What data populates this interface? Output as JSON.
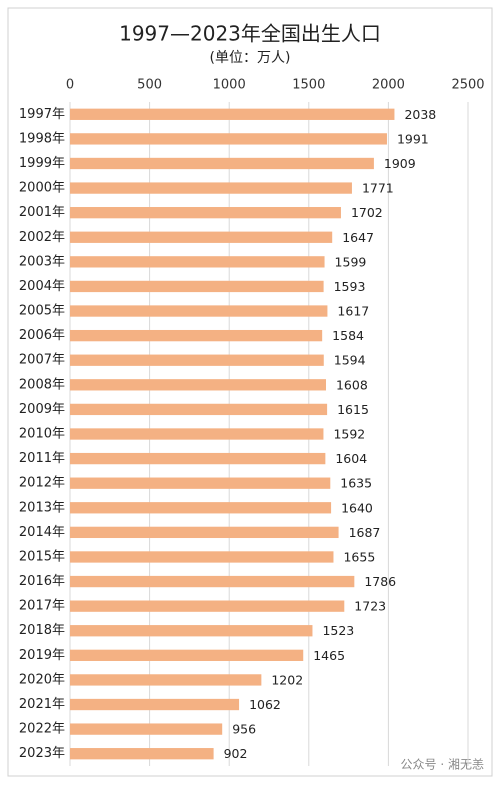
{
  "chart_data": {
    "type": "bar",
    "orientation": "horizontal",
    "title": "1997—2023年全国出生人口",
    "subtitle": "(单位：万人)",
    "categories": [
      "1997年",
      "1998年",
      "1999年",
      "2000年",
      "2001年",
      "2002年",
      "2003年",
      "2004年",
      "2005年",
      "2006年",
      "2007年",
      "2008年",
      "2009年",
      "2010年",
      "2011年",
      "2012年",
      "2013年",
      "2014年",
      "2015年",
      "2016年",
      "2017年",
      "2018年",
      "2019年",
      "2020年",
      "2021年",
      "2022年",
      "2023年"
    ],
    "values": [
      2038,
      1991,
      1909,
      1771,
      1702,
      1647,
      1599,
      1593,
      1617,
      1584,
      1594,
      1608,
      1615,
      1592,
      1604,
      1635,
      1640,
      1687,
      1655,
      1786,
      1723,
      1523,
      1465,
      1202,
      1062,
      956,
      902
    ],
    "color": "#f4b183",
    "xlim": [
      0,
      2500
    ],
    "xticks": [
      0,
      500,
      1000,
      1500,
      2000,
      2500
    ],
    "grid": true,
    "watermark": "公众号 · 湘无恙"
  }
}
